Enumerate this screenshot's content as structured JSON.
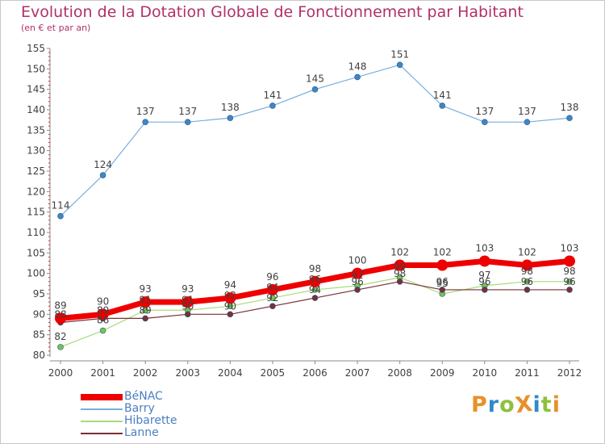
{
  "title": "Evolution de la Dotation Globale de Fonctionnement par Habitant",
  "subtitle": "(en € et par an)",
  "logo": {
    "text": "Proxiti",
    "letters": [
      {
        "ch": "P",
        "color": "#e8902a"
      },
      {
        "ch": "r",
        "color": "#2f8ac9"
      },
      {
        "ch": "o",
        "color": "#8fc03c"
      },
      {
        "ch": "X",
        "color": "#e8902a"
      },
      {
        "ch": "i",
        "color": "#2f8ac9"
      },
      {
        "ch": "t",
        "color": "#8fc03c"
      },
      {
        "ch": "i",
        "color": "#e8902a"
      }
    ]
  },
  "chart_data": {
    "type": "line",
    "x": [
      "2000",
      "2001",
      "2002",
      "2003",
      "2004",
      "2005",
      "2006",
      "2007",
      "2008",
      "2009",
      "2010",
      "2011",
      "2012"
    ],
    "ylim": [
      80,
      155
    ],
    "yticks": [
      80,
      85,
      90,
      95,
      100,
      105,
      110,
      115,
      120,
      125,
      130,
      135,
      140,
      145,
      150,
      155
    ],
    "grid": false,
    "legend_position": "bottom-left",
    "series": [
      {
        "name": "BéNAC",
        "color": "#ee0000",
        "width": 7,
        "marker": 7,
        "values": [
          89,
          90,
          93,
          93,
          94,
          96,
          98,
          100,
          102,
          102,
          103,
          102,
          103
        ]
      },
      {
        "name": "Barry",
        "color": "#7aaedc",
        "marker_color": "#3f86c4",
        "width": 1.2,
        "marker": 3.5,
        "values": [
          114,
          124,
          137,
          137,
          138,
          141,
          145,
          148,
          151,
          141,
          137,
          137,
          138
        ]
      },
      {
        "name": "Hibarette",
        "color": "#a6dc7a",
        "marker_color": "#77c44a",
        "width": 1.2,
        "marker": 3.5,
        "values": [
          82,
          86,
          91,
          91,
          92,
          94,
          96,
          97,
          99,
          95,
          97,
          98,
          98
        ]
      },
      {
        "name": "Lanne",
        "color": "#7a2f37",
        "marker_color": "#7a2f37",
        "width": 1.2,
        "marker": 3.5,
        "values": [
          88,
          89,
          89,
          90,
          90,
          92,
          94,
          96,
          98,
          96,
          96,
          96,
          96
        ]
      }
    ]
  }
}
